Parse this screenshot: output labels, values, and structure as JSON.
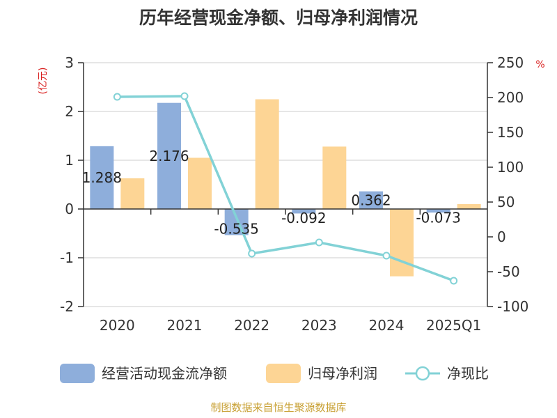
{
  "chart_data": {
    "type": "bar",
    "title": "历年经营现金净额、归母净利润情况",
    "left_axis_unit": "(亿元)",
    "right_axis_unit": "%",
    "categories": [
      "2020",
      "2021",
      "2022",
      "2023",
      "2024",
      "2025Q1"
    ],
    "left_ylim": [
      -2,
      3
    ],
    "left_ticks": [
      3,
      2,
      1,
      0,
      -1,
      -2
    ],
    "right_ylim": [
      -100,
      250
    ],
    "right_ticks": [
      250,
      200,
      150,
      100,
      50,
      0,
      -50,
      -100
    ],
    "grid": true,
    "legend_position": "bottom",
    "series": [
      {
        "name": "经营活动现金流净额",
        "kind": "bar",
        "axis": "left",
        "color": "#8eaedb",
        "values": [
          1.288,
          2.176,
          -0.535,
          -0.092,
          0.362,
          -0.073
        ],
        "labels": [
          "1.288",
          "2.176",
          "-0.535",
          "-0.092",
          "0.362",
          "-0.073"
        ]
      },
      {
        "name": "归母净利润",
        "kind": "bar",
        "axis": "left",
        "color": "#fdd595",
        "values": [
          0.63,
          1.05,
          2.25,
          1.28,
          -1.38,
          0.1
        ]
      },
      {
        "name": "净现比",
        "kind": "line",
        "axis": "right",
        "color": "#82d2d6",
        "values": [
          201,
          202,
          -24,
          -8,
          -27,
          -63
        ]
      }
    ],
    "source": "制图数据来自恒生聚源数据库",
    "source_color": "#c8a033",
    "unit_color": "#d9201f"
  }
}
